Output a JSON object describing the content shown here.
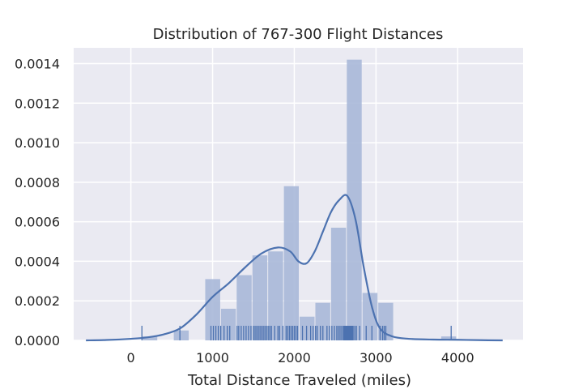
{
  "chart_data": {
    "type": "histogram",
    "title": "Distribution of 767-300 Flight Distances",
    "xlabel": "Total Distance Traveled (miles)",
    "ylabel": "",
    "xlim": [
      -700,
      4800
    ],
    "ylim": [
      0,
      0.00148
    ],
    "xticks": [
      0,
      1000,
      2000,
      3000,
      4000
    ],
    "yticks": [
      0,
      0.0002,
      0.0004,
      0.0006,
      0.0008,
      0.001,
      0.0012,
      0.0014
    ],
    "ytick_labels": [
      "0.0000",
      "0.0002",
      "0.0004",
      "0.0006",
      "0.0008",
      "0.0010",
      "0.0012",
      "0.0014"
    ],
    "grid": true,
    "style": "seaborn darkgrid",
    "colors": {
      "background": "#EAEAF2",
      "grid": "#FFFFFF",
      "bar": "#A9B8D8",
      "line": "#4C72B0",
      "rug": "#4C72B0"
    },
    "histogram": {
      "bins": [
        {
          "x0": 135,
          "x1": 328,
          "density": 2e-05
        },
        {
          "x0": 328,
          "x1": 520,
          "density": 0.0
        },
        {
          "x0": 520,
          "x1": 713,
          "density": 5e-05
        },
        {
          "x0": 713,
          "x1": 905,
          "density": 0.0
        },
        {
          "x0": 905,
          "x1": 1098,
          "density": 0.00031
        },
        {
          "x0": 1098,
          "x1": 1290,
          "density": 0.00016
        },
        {
          "x0": 1290,
          "x1": 1483,
          "density": 0.00033
        },
        {
          "x0": 1483,
          "x1": 1675,
          "density": 0.00043
        },
        {
          "x0": 1675,
          "x1": 1868,
          "density": 0.00045
        },
        {
          "x0": 1868,
          "x1": 2060,
          "density": 0.00078
        },
        {
          "x0": 2060,
          "x1": 2253,
          "density": 0.00012
        },
        {
          "x0": 2253,
          "x1": 2445,
          "density": 0.00019
        },
        {
          "x0": 2445,
          "x1": 2638,
          "density": 0.00057
        },
        {
          "x0": 2638,
          "x1": 2830,
          "density": 0.00142
        },
        {
          "x0": 2830,
          "x1": 3023,
          "density": 0.00024
        },
        {
          "x0": 3023,
          "x1": 3215,
          "density": 0.00019
        },
        {
          "x0": 3215,
          "x1": 3408,
          "density": 0.0
        },
        {
          "x0": 3408,
          "x1": 3600,
          "density": 0.0
        },
        {
          "x0": 3600,
          "x1": 3793,
          "density": 0.0
        },
        {
          "x0": 3793,
          "x1": 3985,
          "density": 2e-05
        }
      ]
    },
    "kde": {
      "x": [
        -550,
        -300,
        0,
        200,
        400,
        600,
        800,
        1000,
        1200,
        1400,
        1600,
        1800,
        1950,
        2050,
        2150,
        2250,
        2350,
        2450,
        2550,
        2650,
        2750,
        2850,
        2950,
        3050,
        3200,
        3400,
        3700,
        4000,
        4300,
        4550
      ],
      "y": [
        0.0,
        2e-06,
        8e-06,
        1.5e-05,
        3e-05,
        6e-05,
        0.00013,
        0.00022,
        0.00029,
        0.00037,
        0.00044,
        0.00047,
        0.00045,
        0.0004,
        0.00039,
        0.00045,
        0.00055,
        0.00065,
        0.00071,
        0.00073,
        0.00061,
        0.00037,
        0.00017,
        6e-05,
        2e-05,
        8e-06,
        4e-06,
        3e-06,
        1e-06,
        0.0
      ]
    },
    "rug": {
      "points": [
        135,
        600,
        980,
        1010,
        1040,
        1070,
        1100,
        1140,
        1180,
        1210,
        1300,
        1320,
        1350,
        1380,
        1410,
        1440,
        1470,
        1500,
        1520,
        1540,
        1560,
        1580,
        1600,
        1620,
        1640,
        1660,
        1680,
        1700,
        1720,
        1760,
        1800,
        1820,
        1860,
        1900,
        1920,
        1940,
        1960,
        1980,
        2000,
        2020,
        2040,
        2100,
        2150,
        2200,
        2230,
        2260,
        2280,
        2320,
        2350,
        2400,
        2430,
        2460,
        2490,
        2520,
        2540,
        2560,
        2580,
        2600,
        2610,
        2620,
        2630,
        2640,
        2650,
        2660,
        2670,
        2680,
        2690,
        2700,
        2710,
        2720,
        2740,
        2760,
        2800,
        2880,
        2950,
        3050,
        3080,
        3100,
        3120,
        3920
      ],
      "outliers": [
        135,
        600,
        3920
      ]
    }
  }
}
